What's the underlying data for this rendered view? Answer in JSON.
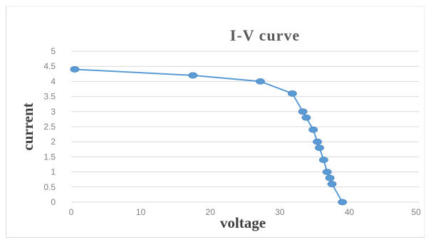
{
  "chart_data": {
    "type": "scatter",
    "title": "I-V curve",
    "xlabel": "voltage",
    "ylabel": "current",
    "xlim": [
      0,
      50
    ],
    "ylim": [
      0,
      5
    ],
    "x_ticks": [
      "0",
      "10",
      "20",
      "30",
      "40",
      "50"
    ],
    "y_ticks": [
      "0",
      "0.5",
      "1",
      "1.5",
      "2",
      "2.5",
      "3",
      "3.5",
      "4",
      "4.5",
      "5"
    ],
    "grid": "horizontal",
    "legend": "none",
    "line_color": "#5b9bd5",
    "series": [
      {
        "points": [
          {
            "x": 0.5,
            "y": 4.4
          },
          {
            "x": 17.5,
            "y": 4.2
          },
          {
            "x": 27.2,
            "y": 4.0
          },
          {
            "x": 31.8,
            "y": 3.6
          },
          {
            "x": 33.3,
            "y": 3.0
          },
          {
            "x": 33.8,
            "y": 2.8
          },
          {
            "x": 34.8,
            "y": 2.4
          },
          {
            "x": 35.4,
            "y": 2.0
          },
          {
            "x": 35.7,
            "y": 1.8
          },
          {
            "x": 36.3,
            "y": 1.4
          },
          {
            "x": 36.8,
            "y": 1.0
          },
          {
            "x": 37.2,
            "y": 0.8
          },
          {
            "x": 37.5,
            "y": 0.6
          },
          {
            "x": 39.0,
            "y": 0.0
          }
        ]
      }
    ]
  }
}
